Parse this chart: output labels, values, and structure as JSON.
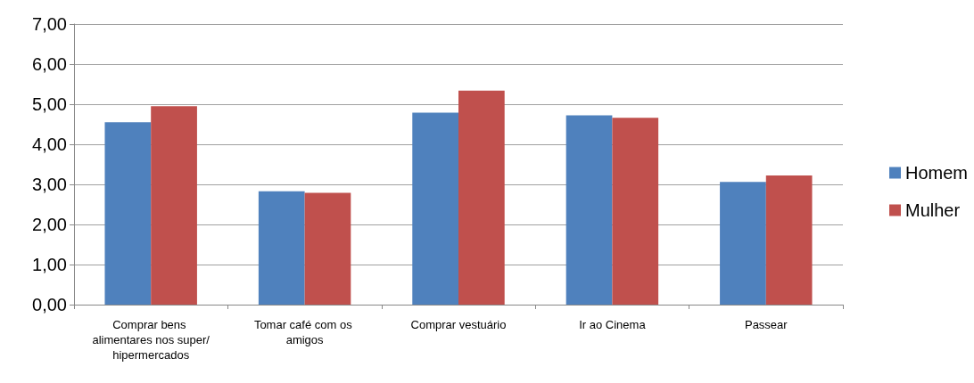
{
  "chart_data": {
    "type": "bar",
    "categories": [
      "Comprar bens alimentares nos super/hipermercados",
      "Tomar café com os amigos",
      "Comprar vestuário",
      "Ir ao Cinema",
      "Passear"
    ],
    "series": [
      {
        "name": "Homem",
        "color": "#4f81bd",
        "values": [
          4.55,
          2.83,
          4.79,
          4.72,
          3.06
        ]
      },
      {
        "name": "Mulher",
        "color": "#c0504d",
        "values": [
          4.95,
          2.79,
          5.34,
          4.66,
          3.22
        ]
      }
    ],
    "ylim": [
      0,
      7
    ],
    "yticks": [
      {
        "value": 0,
        "label": "0,00"
      },
      {
        "value": 1,
        "label": "1,00"
      },
      {
        "value": 2,
        "label": "2,00"
      },
      {
        "value": 3,
        "label": "3,00"
      },
      {
        "value": 4,
        "label": "4,00"
      },
      {
        "value": 5,
        "label": "5,00"
      },
      {
        "value": 6,
        "label": "6,00"
      },
      {
        "value": 7,
        "label": "7,00"
      }
    ],
    "grid": "y",
    "legend": "right"
  }
}
